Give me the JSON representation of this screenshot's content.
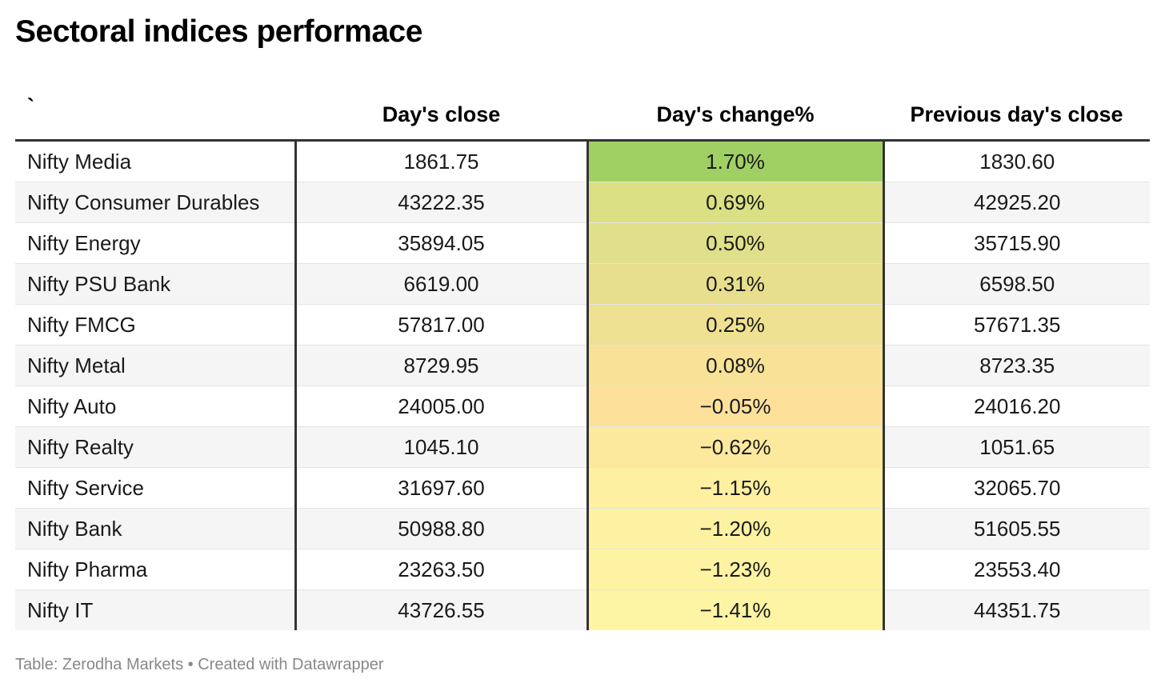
{
  "title": "Sectoral indices performace",
  "footer": "Table: Zerodha Markets • Created with Datawrapper",
  "chart_data": {
    "type": "table",
    "columns": [
      "`",
      "Day's close",
      "Day's change%",
      "Previous day's close"
    ],
    "rows": [
      {
        "name": "Nifty Media",
        "close": "1861.75",
        "change": "1.70%",
        "prev": "1830.60",
        "color": "#a0d064"
      },
      {
        "name": "Nifty Consumer Durables",
        "close": "43222.35",
        "change": "0.69%",
        "prev": "42925.20",
        "color": "#dae083"
      },
      {
        "name": "Nifty Energy",
        "close": "35894.05",
        "change": "0.50%",
        "prev": "35715.90",
        "color": "#e0e08a"
      },
      {
        "name": "Nifty PSU Bank",
        "close": "6619.00",
        "change": "0.31%",
        "prev": "6598.50",
        "color": "#e8df8e"
      },
      {
        "name": "Nifty FMCG",
        "close": "57817.00",
        "change": "0.25%",
        "prev": "57671.35",
        "color": "#eee191"
      },
      {
        "name": "Nifty Metal",
        "close": "8729.95",
        "change": "0.08%",
        "prev": "8723.35",
        "color": "#f8e297"
      },
      {
        "name": "Nifty Auto",
        "close": "24005.00",
        "change": "−0.05%",
        "prev": "24016.20",
        "color": "#fde19b"
      },
      {
        "name": "Nifty Realty",
        "close": "1045.10",
        "change": "−0.62%",
        "prev": "1051.65",
        "color": "#fde99e"
      },
      {
        "name": "Nifty Service",
        "close": "31697.60",
        "change": "−1.15%",
        "prev": "32065.70",
        "color": "#fdf0a0"
      },
      {
        "name": "Nifty Bank",
        "close": "50988.80",
        "change": "−1.20%",
        "prev": "51605.55",
        "color": "#fdf2a1"
      },
      {
        "name": "Nifty Pharma",
        "close": "23263.50",
        "change": "−1.23%",
        "prev": "23553.40",
        "color": "#fdf3a2"
      },
      {
        "name": "Nifty IT",
        "close": "43726.55",
        "change": "−1.41%",
        "prev": "44351.75",
        "color": "#fdf4a4"
      }
    ]
  }
}
